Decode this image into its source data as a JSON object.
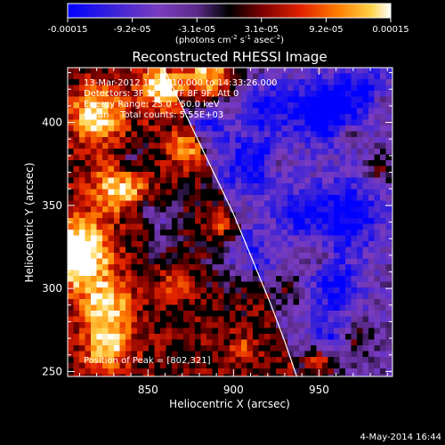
{
  "colorbar": {
    "ticks": [
      "-0.00015",
      "-9.2e-05",
      "-3.1e-05",
      "3.1e-05",
      "9.2e-05",
      "0.00015"
    ],
    "unit_main": "(photons cm",
    "unit_sup1": "-2",
    "unit_mid": " s",
    "unit_sup2": "-1",
    "unit_end": " asec",
    "unit_sup3": "-2",
    "unit_close": ")",
    "colors": [
      "#0000ff",
      "#3a22d8",
      "#7a3cc0",
      "#5a2a8a",
      "#000000",
      "#7a0000",
      "#e02000",
      "#ff8000",
      "#ffd24a",
      "#ffffff"
    ]
  },
  "chart_data": {
    "type": "heatmap",
    "title": "Reconstructed RHESSI Image",
    "xlabel": "Heliocentric X (arcsec)",
    "ylabel": "Heliocentric Y (arcsec)",
    "xlim": [
      803,
      993
    ],
    "ylim": [
      247,
      433
    ],
    "x_ticks": [
      850,
      900,
      950
    ],
    "y_ticks": [
      250,
      300,
      350,
      400
    ],
    "x_tick_labels": [
      "850",
      "900",
      "950"
    ],
    "y_tick_labels": [
      "250",
      "300",
      "350",
      "400"
    ],
    "limb_curve": {
      "x": [
        859,
        872,
        886,
        900,
        912,
        922,
        930,
        937
      ],
      "y": [
        433,
        405,
        375,
        345,
        315,
        290,
        268,
        247
      ]
    },
    "peak_position": [
      802,
      321
    ],
    "colormap_range": [
      -0.00015,
      0.00015
    ]
  },
  "annotations": {
    "time_range": "13-Mar-2012 14:25:10.000 to 14:33:26.000",
    "detectors": "Detectors: 3F 5F 6F 7F 8F 9F, Att 0",
    "energy_range": "Energy Range: 25.0 - 50.0 keV",
    "clean_counts": "Clean    Total counts: 5.55E+03",
    "peak_label": "Position of Peak = [802,321]"
  },
  "footer": {
    "date": "4-May-2014 16:44"
  }
}
